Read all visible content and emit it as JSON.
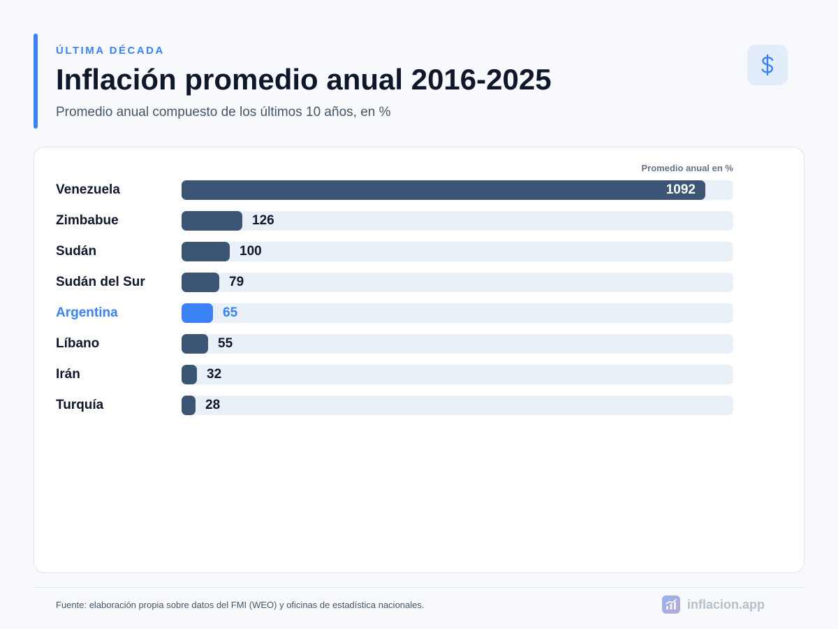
{
  "header": {
    "eyebrow": "ÚLTIMA DÉCADA",
    "title": "Inflación promedio anual 2016-2025",
    "subtitle": "Promedio anual compuesto de los últimos 10 años, en %",
    "icon": "dollar-icon"
  },
  "chart_data": {
    "type": "bar",
    "orientation": "horizontal",
    "axis_caption": "Promedio anual en %",
    "categories": [
      "Venezuela",
      "Zimbabue",
      "Sudán",
      "Sudán del Sur",
      "Argentina",
      "Líbano",
      "Irán",
      "Turquía"
    ],
    "values": [
      1092,
      126,
      100,
      79,
      65,
      55,
      32,
      28
    ],
    "labels": [
      "1092",
      "126",
      "100",
      "79",
      "65",
      "55",
      "32",
      "28"
    ],
    "highlight": "Argentina",
    "xlim": [
      0,
      1150
    ],
    "colors": {
      "bar": "#3d5575",
      "highlight": "#3b82f6",
      "track": "#eaf0f8"
    }
  },
  "footer": {
    "source": "Fuente: elaboración propia sobre datos del FMI (WEO) y oficinas de estadística nacionales.",
    "brand": "inflacion.app",
    "brand_icon": "chart-up-icon"
  }
}
